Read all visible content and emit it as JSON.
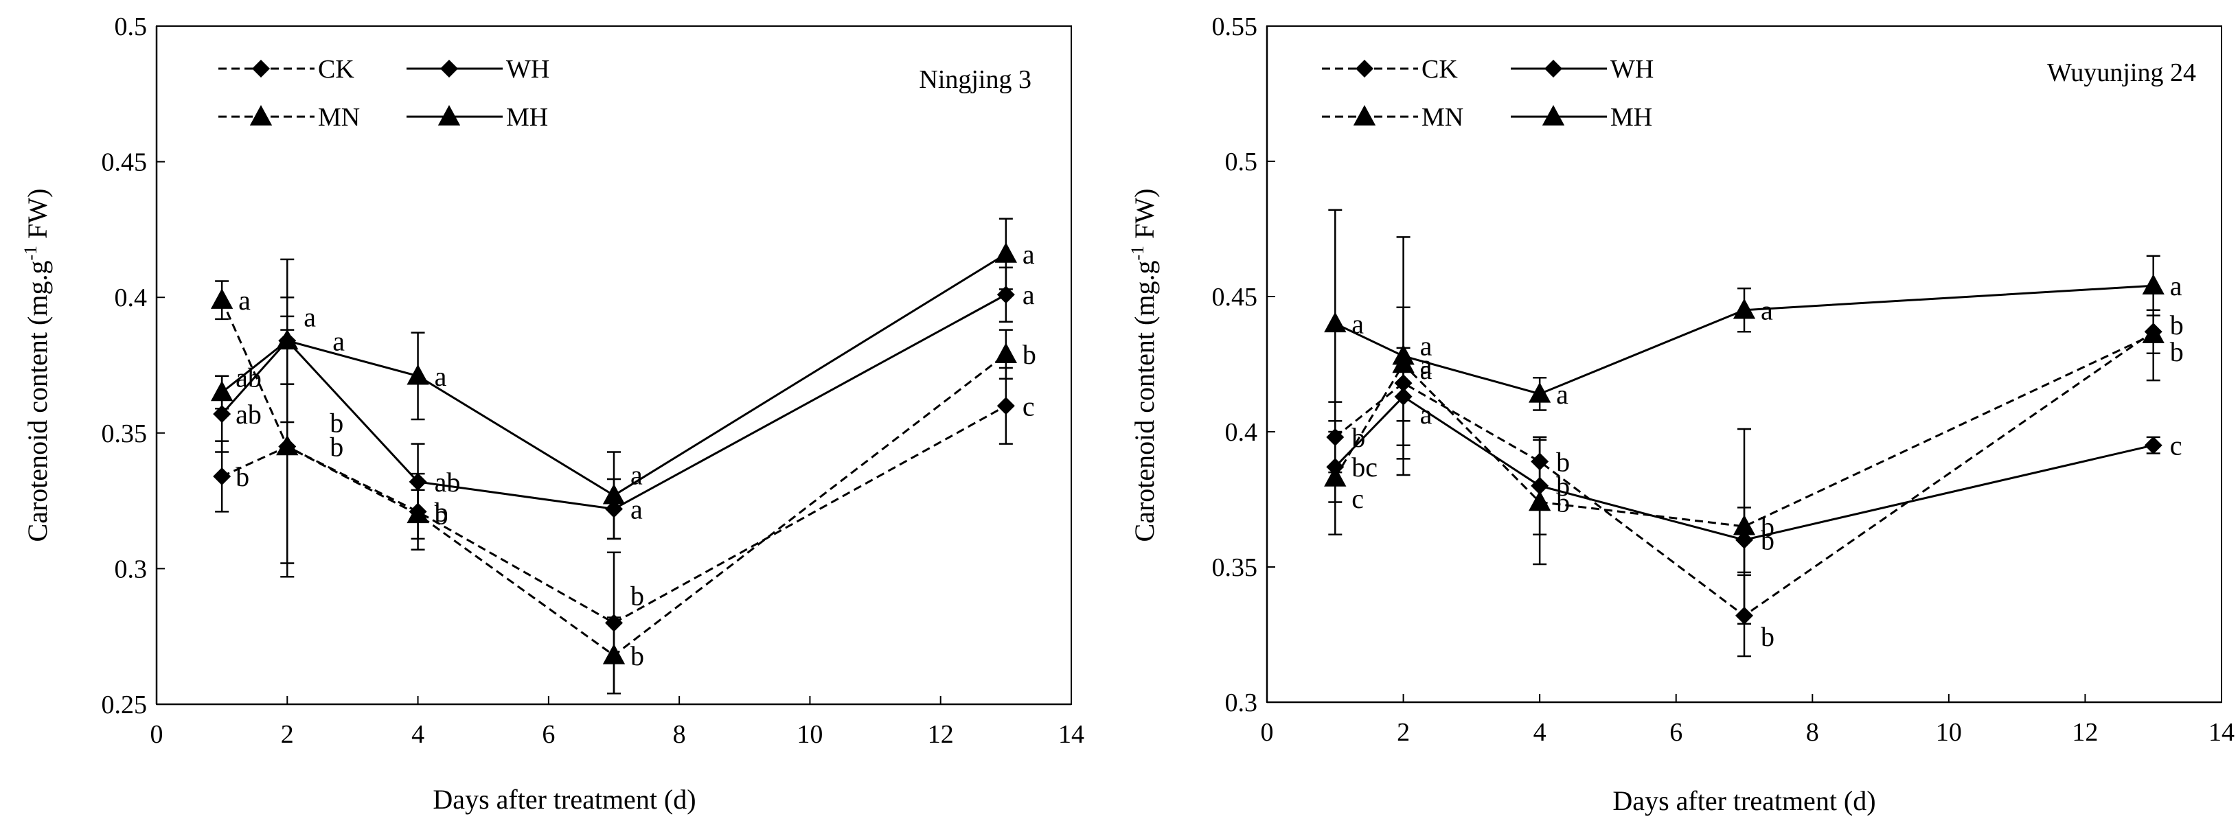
{
  "chart_data": [
    {
      "type": "line",
      "title": "Ningjing 3",
      "xlabel": "Days after treatment (d)",
      "ylabel": "Carotenoid content (mg.g-1 FW)",
      "ylabel_parts": [
        "Carotenoid content (mg.g",
        "-1",
        " FW)"
      ],
      "xlim": [
        0,
        14
      ],
      "ylim": [
        0.25,
        0.5
      ],
      "xticks": [
        0,
        2,
        4,
        6,
        8,
        10,
        12,
        14
      ],
      "xtick_labels": [
        "0",
        "2",
        "4",
        "6",
        "8",
        "10",
        "12",
        "14"
      ],
      "yticks": [
        0.25,
        0.3,
        0.35,
        0.4,
        0.45,
        0.5
      ],
      "ytick_labels": [
        "0.25",
        "0.3",
        "0.35",
        "0.4",
        "0.45",
        "0.5"
      ],
      "legend_position": "top-left",
      "x": [
        1,
        2,
        4,
        7,
        13
      ],
      "series": [
        {
          "name": "CK",
          "line": "dashed",
          "marker": "diamond",
          "values": [
            0.334,
            0.345,
            0.321,
            0.28,
            0.36
          ],
          "errors": [
            0.013,
            0.048,
            0.014,
            0.026,
            0.014
          ],
          "letters": [
            "b",
            "b",
            "b",
            "b",
            "c"
          ]
        },
        {
          "name": "WH",
          "line": "solid",
          "marker": "diamond",
          "values": [
            0.357,
            0.384,
            0.332,
            0.322,
            0.401
          ],
          "errors": [
            0.014,
            0.016,
            0.014,
            0.011,
            0.01
          ],
          "letters": [
            "ab",
            "a",
            "ab",
            "a",
            "a"
          ]
        },
        {
          "name": "MN",
          "line": "dashed",
          "marker": "triangle",
          "values": [
            0.399,
            0.345,
            0.32,
            0.268,
            0.379
          ],
          "errors": [
            0.007,
            0.043,
            0.009,
            0.014,
            0.009
          ],
          "letters": [
            "a",
            "b",
            "b",
            "b",
            "b"
          ]
        },
        {
          "name": "MH",
          "line": "solid",
          "marker": "triangle",
          "values": [
            0.365,
            0.384,
            0.371,
            0.327,
            0.416
          ],
          "errors": [
            0.006,
            0.03,
            0.016,
            0.016,
            0.013
          ],
          "letters": [
            "ab",
            "a",
            "a",
            "a",
            "a"
          ]
        }
      ]
    },
    {
      "type": "line",
      "title": "Wuyunjing 24",
      "xlabel": "Days after treatment (d)",
      "ylabel": "Carotenoid content (mg.g-1 FW)",
      "ylabel_parts": [
        "Carotenoid content (mg.g",
        "-1",
        " FW)"
      ],
      "xlim": [
        0,
        14
      ],
      "ylim": [
        0.3,
        0.55
      ],
      "xticks": [
        0,
        2,
        4,
        6,
        8,
        10,
        12,
        14
      ],
      "xtick_labels": [
        "0",
        "2",
        "4",
        "6",
        "8",
        "10",
        "12",
        "14"
      ],
      "yticks": [
        0.3,
        0.35,
        0.4,
        0.45,
        0.5,
        0.55
      ],
      "ytick_labels": [
        "0.3",
        "0.35",
        "0.4",
        "0.45",
        "0.5",
        "0.55"
      ],
      "legend_position": "top-left",
      "x": [
        1,
        2,
        4,
        7,
        13
      ],
      "series": [
        {
          "name": "CK",
          "line": "dashed",
          "marker": "diamond",
          "values": [
            0.398,
            0.418,
            0.389,
            0.332,
            0.437
          ],
          "errors": [
            0.013,
            0.028,
            0.009,
            0.015,
            0.008
          ],
          "letters": [
            "b",
            "a",
            "b",
            "b",
            "b"
          ]
        },
        {
          "name": "WH",
          "line": "solid",
          "marker": "diamond",
          "values": [
            0.387,
            0.413,
            0.38,
            0.36,
            0.395
          ],
          "errors": [
            0.013,
            0.018,
            0.018,
            0.012,
            0.003
          ],
          "letters": [
            "bc",
            "a",
            "b",
            "b",
            "c"
          ]
        },
        {
          "name": "MN",
          "line": "dashed",
          "marker": "triangle",
          "values": [
            0.383,
            0.425,
            0.374,
            0.365,
            0.436
          ],
          "errors": [
            0.021,
            0.021,
            0.023,
            0.036,
            0.017
          ],
          "letters": [
            "c",
            "a",
            "b",
            "b",
            "b"
          ]
        },
        {
          "name": "MH",
          "line": "solid",
          "marker": "triangle",
          "values": [
            0.44,
            0.428,
            0.414,
            0.445,
            0.454
          ],
          "errors": [
            0.042,
            0.044,
            0.006,
            0.008,
            0.011
          ],
          "letters": [
            "a",
            "a",
            "a",
            "a",
            "a"
          ]
        }
      ]
    }
  ]
}
